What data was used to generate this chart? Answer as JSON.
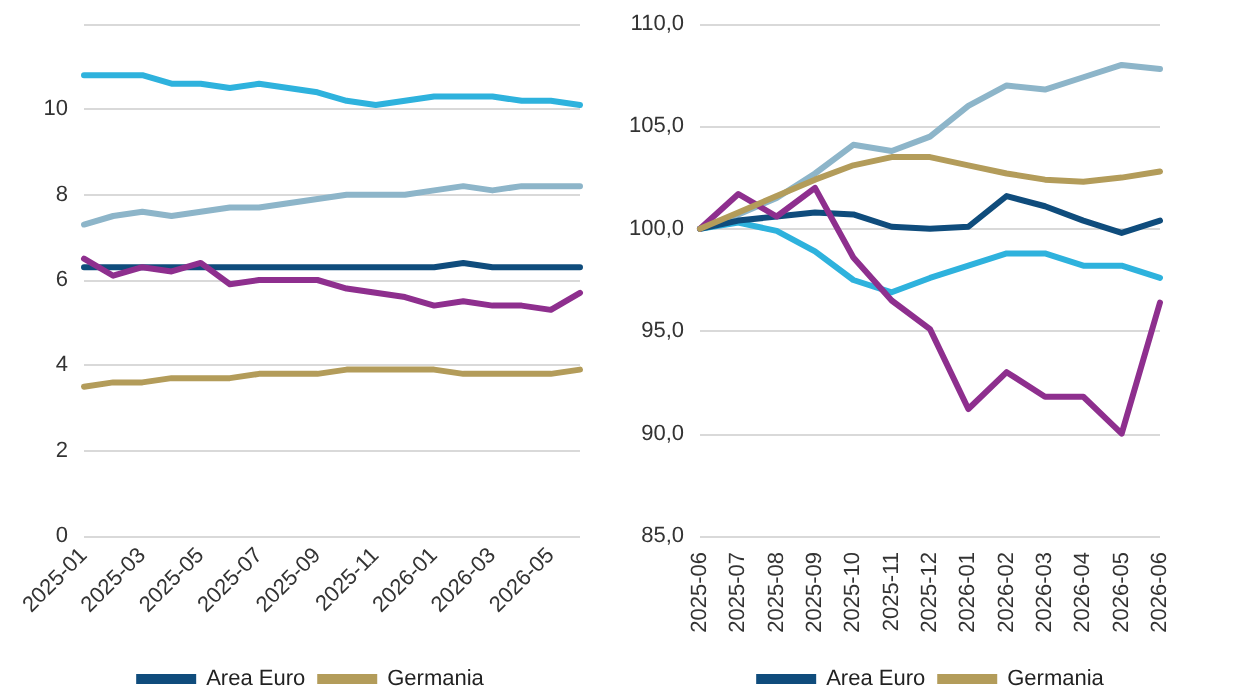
{
  "chart_data": [
    {
      "type": "line",
      "categories": [
        "2025-01",
        null,
        "2025-03",
        null,
        "2025-05",
        null,
        "2025-07",
        null,
        "2025-09",
        null,
        "2025-11",
        null,
        "2026-01",
        null,
        "2026-03",
        null,
        "2026-05",
        null
      ],
      "ylim": [
        0,
        12
      ],
      "yticks": [
        0,
        2,
        4,
        6,
        8,
        10,
        {
          "value": 12,
          "label": null
        }
      ],
      "grid": "y",
      "legend": "bottom",
      "marker": "none",
      "series": [
        {
          "color": "#2eb2dd",
          "values": [
            10.8,
            10.8,
            10.8,
            10.6,
            10.6,
            10.5,
            10.6,
            10.5,
            10.4,
            10.2,
            10.1,
            10.2,
            10.3,
            10.3,
            10.3,
            10.2,
            10.2,
            10.1
          ]
        },
        {
          "color": "#8db5c9",
          "values": [
            7.3,
            7.5,
            7.6,
            7.5,
            7.6,
            7.7,
            7.7,
            7.8,
            7.9,
            8.0,
            8.0,
            8.0,
            8.1,
            8.2,
            8.1,
            8.2,
            8.2,
            8.2
          ]
        },
        {
          "name": "Area Euro",
          "color": "#0f4c7c",
          "values": [
            6.3,
            6.3,
            6.3,
            6.3,
            6.3,
            6.3,
            6.3,
            6.3,
            6.3,
            6.3,
            6.3,
            6.3,
            6.3,
            6.4,
            6.3,
            6.3,
            6.3,
            6.3
          ]
        },
        {
          "color": "#8e2f8e",
          "values": [
            6.5,
            6.1,
            6.3,
            6.2,
            6.4,
            5.9,
            6.0,
            6.0,
            6.0,
            5.8,
            5.7,
            5.6,
            5.4,
            5.5,
            5.4,
            5.4,
            5.3,
            5.7
          ]
        },
        {
          "name": "Germania",
          "color": "#b39c5a",
          "values": [
            3.5,
            3.6,
            3.6,
            3.7,
            3.7,
            3.7,
            3.8,
            3.8,
            3.8,
            3.9,
            3.9,
            3.9,
            3.9,
            3.8,
            3.8,
            3.8,
            3.8,
            3.9
          ]
        }
      ]
    },
    {
      "type": "line",
      "categories": [
        "2025-06",
        "2025-07",
        "2025-08",
        "2025-09",
        "2025-10",
        "2025-11",
        "2025-12",
        "2026-01",
        "2026-02",
        "2026-03",
        "2026-04",
        "2026-05",
        "2026-06"
      ],
      "ylim": [
        85,
        110
      ],
      "yticks": [
        {
          "value": 85,
          "label": "85,0"
        },
        {
          "value": 90,
          "label": "90,0"
        },
        {
          "value": 95,
          "label": "95,0"
        },
        {
          "value": 100,
          "label": "100,0"
        },
        {
          "value": 105,
          "label": "105,0"
        },
        {
          "value": 110,
          "label": "110,0"
        }
      ],
      "grid": "y",
      "legend": "bottom",
      "marker": "none",
      "series": [
        {
          "color": "#2eb2dd",
          "values": [
            100,
            100.3,
            99.9,
            98.9,
            97.5,
            96.9,
            97.6,
            98.2,
            98.8,
            98.8,
            98.2,
            98.2,
            97.6
          ]
        },
        {
          "color": "#8db5c9",
          "values": [
            100,
            100.7,
            101.5,
            102.7,
            104.1,
            103.8,
            104.5,
            106.0,
            107.0,
            106.8,
            107.4,
            108.0,
            107.8
          ]
        },
        {
          "name": "Area Euro",
          "color": "#0f4c7c",
          "values": [
            100,
            100.4,
            100.6,
            100.8,
            100.7,
            100.1,
            100.0,
            100.1,
            101.6,
            101.1,
            100.4,
            99.8,
            100.4
          ]
        },
        {
          "color": "#8e2f8e",
          "values": [
            100,
            101.7,
            100.6,
            102.0,
            98.6,
            96.5,
            95.1,
            91.2,
            93.0,
            91.8,
            91.8,
            90.0,
            96.4
          ]
        },
        {
          "name": "Germania",
          "color": "#b39c5a",
          "values": [
            100,
            100.8,
            101.6,
            102.4,
            103.1,
            103.5,
            103.5,
            103.1,
            102.7,
            102.4,
            102.3,
            102.5,
            102.8
          ]
        }
      ]
    }
  ]
}
